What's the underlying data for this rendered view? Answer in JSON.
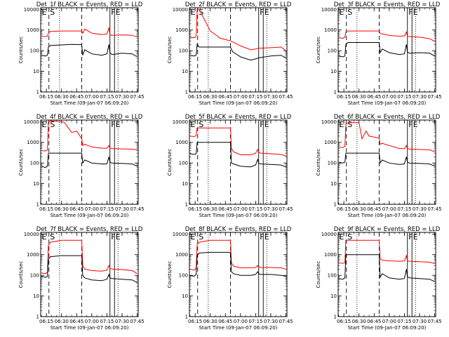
{
  "ylabel": "Counts/sec",
  "xlabel": "Start Time (09-Jan-07 06:09:20)",
  "x_tick_labels": [
    "06:15",
    "06:30",
    "06:45",
    "07:00",
    "07:15",
    "07:30",
    "07:45"
  ],
  "x_tick_minutes": [
    15,
    30,
    45,
    60,
    75,
    90,
    105
  ],
  "xlim_minutes_after_06h": [
    9.33,
    106
  ],
  "y_tick_labels": [
    "1",
    "10",
    "100",
    "1000",
    "10000"
  ],
  "y_scale": "log",
  "ylim": [
    1,
    12000
  ],
  "markers": [
    {
      "label": "E",
      "minute": 9.33,
      "style": "solid"
    },
    {
      "label": "S",
      "minute": 17.5,
      "style": "dashed"
    },
    {
      "label": "",
      "minute": 28,
      "style": "dotted"
    },
    {
      "label": "",
      "minute": 50,
      "style": "dashed"
    },
    {
      "label": "F",
      "minute": 78,
      "style": "solid"
    },
    {
      "label": "E",
      "minute": 82.5,
      "style": "solid"
    },
    {
      "label": "",
      "minute": 86,
      "style": "dotted"
    }
  ],
  "colors": {
    "events": "#000000",
    "lld": "#ff0000",
    "axes": "#000000"
  },
  "chart_data": [
    {
      "type": "line",
      "title": "Det_1f BLACK = Events, RED = LLD",
      "ylabel": "Counts/sec",
      "xlabel": "Start Time (09-Jan-07 06:09:20)",
      "y_scale": "log",
      "series": [
        {
          "x": [
            "06:10",
            "06:14",
            "06:16",
            "06:17",
            "06:19",
            "06:30",
            "06:40",
            "06:50",
            "06:51",
            "06:53",
            "07:00",
            "07:10",
            "07:15",
            "07:17",
            "07:18",
            "07:20",
            "07:30",
            "07:40",
            "07:45"
          ],
          "values": [
            500,
            480,
            500,
            700,
            850,
            900,
            900,
            900,
            700,
            1100,
            700,
            600,
            650,
            1300,
            600,
            550,
            580,
            560,
            460
          ]
        },
        {
          "x": [
            "06:10",
            "06:14",
            "06:16",
            "06:17",
            "06:19",
            "06:30",
            "06:40",
            "06:50",
            "06:51",
            "06:53",
            "07:00",
            "07:10",
            "07:15",
            "07:17",
            "07:18",
            "07:20",
            "07:30",
            "07:40",
            "07:45"
          ],
          "values": [
            60,
            55,
            60,
            150,
            180,
            190,
            200,
            195,
            60,
            110,
            70,
            60,
            70,
            200,
            80,
            65,
            75,
            70,
            50
          ]
        }
      ]
    },
    {
      "type": "line",
      "title": "Det_2f BLACK = Events, RED = LLD",
      "ylabel": "Counts/sec",
      "xlabel": "Start Time (09-Jan-07 06:09:20)",
      "y_scale": "log",
      "series": [
        {
          "x": [
            "06:10",
            "06:14",
            "06:16",
            "06:17",
            "06:19",
            "06:30",
            "06:40",
            "06:50",
            "07:00",
            "07:10",
            "07:15",
            "07:18",
            "07:30",
            "07:40",
            "07:45"
          ],
          "values": [
            450,
            420,
            500,
            10000,
            10000,
            900,
            400,
            300,
            170,
            110,
            120,
            130,
            140,
            150,
            100
          ]
        },
        {
          "x": [
            "06:10",
            "06:14",
            "06:16",
            "06:17",
            "06:19",
            "06:30",
            "06:45",
            "06:50",
            "06:52",
            "07:00",
            "07:10",
            "07:15",
            "07:18",
            "07:30",
            "07:40",
            "07:45"
          ],
          "values": [
            60,
            55,
            60,
            200,
            150,
            150,
            150,
            150,
            90,
            50,
            35,
            40,
            45,
            55,
            60,
            45
          ]
        }
      ]
    },
    {
      "type": "line",
      "title": "Det_3f BLACK = Events, RED = LLD",
      "ylabel": "Counts/sec",
      "xlabel": "Start Time (09-Jan-07 06:09:20)",
      "y_scale": "log",
      "series": [
        {
          "x": [
            "06:10",
            "06:14",
            "06:16",
            "06:17",
            "06:19",
            "06:30",
            "06:45",
            "06:50",
            "06:51",
            "06:53",
            "07:00",
            "07:10",
            "07:15",
            "07:17",
            "07:18",
            "07:20",
            "07:30",
            "07:40",
            "07:45"
          ],
          "values": [
            420,
            400,
            450,
            800,
            900,
            900,
            900,
            900,
            700,
            650,
            550,
            500,
            520,
            800,
            500,
            480,
            450,
            380,
            280
          ]
        },
        {
          "x": [
            "06:10",
            "06:14",
            "06:16",
            "06:17",
            "06:19",
            "06:30",
            "06:45",
            "06:50",
            "06:51",
            "06:53",
            "07:00",
            "07:10",
            "07:15",
            "07:17",
            "07:18",
            "07:20",
            "07:30",
            "07:40",
            "07:45"
          ],
          "values": [
            55,
            50,
            55,
            200,
            250,
            250,
            250,
            250,
            80,
            120,
            80,
            65,
            70,
            200,
            85,
            75,
            80,
            75,
            55
          ]
        }
      ]
    },
    {
      "type": "line",
      "title": "Det_4f BLACK = Events, RED = LLD",
      "ylabel": "Counts/sec",
      "xlabel": "Start Time (09-Jan-07 06:09:20)",
      "y_scale": "log",
      "series": [
        {
          "x": [
            "06:10",
            "06:14",
            "06:16",
            "06:17",
            "06:20",
            "06:30",
            "06:33",
            "06:40",
            "06:45",
            "06:50",
            "06:51",
            "06:53",
            "07:00",
            "07:10",
            "07:15",
            "07:17",
            "07:18",
            "07:20",
            "07:30",
            "07:40",
            "07:45"
          ],
          "values": [
            400,
            380,
            420,
            10000,
            11000,
            10000,
            9000,
            3000,
            3500,
            1500,
            700,
            800,
            600,
            520,
            520,
            700,
            520,
            500,
            480,
            470,
            430
          ]
        },
        {
          "x": [
            "06:10",
            "06:14",
            "06:16",
            "06:17",
            "06:19",
            "06:30",
            "06:45",
            "06:50",
            "06:51",
            "06:53",
            "07:00",
            "07:10",
            "07:15",
            "07:17",
            "07:18",
            "07:20",
            "07:30",
            "07:40",
            "07:45"
          ],
          "values": [
            70,
            60,
            70,
            300,
            300,
            300,
            300,
            300,
            100,
            140,
            100,
            90,
            90,
            200,
            110,
            100,
            95,
            90,
            70
          ]
        }
      ]
    },
    {
      "type": "line",
      "title": "Det_5f BLACK = Events, RED = LLD",
      "ylabel": "Counts/sec",
      "xlabel": "Start Time (09-Jan-07 06:09:20)",
      "y_scale": "log",
      "series": [
        {
          "x": [
            "06:10",
            "06:14",
            "06:16",
            "06:17",
            "06:19",
            "06:30",
            "06:45",
            "06:50",
            "06:51",
            "06:53",
            "07:00",
            "07:10",
            "07:15",
            "07:17",
            "07:18",
            "07:20",
            "07:30",
            "07:40",
            "07:45"
          ],
          "values": [
            2000,
            1900,
            2100,
            5000,
            5000,
            5000,
            5000,
            5000,
            500,
            350,
            250,
            250,
            300,
            450,
            330,
            300,
            280,
            260,
            220
          ]
        },
        {
          "x": [
            "06:10",
            "06:14",
            "06:16",
            "06:17",
            "06:19",
            "06:30",
            "06:45",
            "06:50",
            "06:51",
            "06:53",
            "07:00",
            "07:10",
            "07:15",
            "07:17",
            "07:18",
            "07:20",
            "07:30",
            "07:40",
            "07:45"
          ],
          "values": [
            280,
            260,
            280,
            1000,
            1000,
            1000,
            1000,
            1000,
            100,
            90,
            70,
            65,
            80,
            150,
            100,
            90,
            85,
            80,
            65
          ]
        }
      ]
    },
    {
      "type": "line",
      "title": "Det_6f BLACK = Events, RED = LLD",
      "ylabel": "Counts/sec",
      "xlabel": "Start Time (09-Jan-07 06:09:20)",
      "y_scale": "log",
      "series": [
        {
          "x": [
            "06:10",
            "06:14",
            "06:16",
            "06:17",
            "06:20",
            "06:30",
            "06:33",
            "06:37",
            "06:40",
            "06:45",
            "06:50",
            "06:51",
            "06:53",
            "07:00",
            "07:10",
            "07:15",
            "07:17",
            "07:18",
            "07:20",
            "07:30",
            "07:40",
            "07:45"
          ],
          "values": [
            600,
            550,
            650,
            8000,
            9000,
            9000,
            1500,
            3500,
            2000,
            1800,
            1600,
            800,
            900,
            700,
            500,
            500,
            700,
            500,
            470,
            450,
            430,
            350
          ]
        },
        {
          "x": [
            "06:10",
            "06:14",
            "06:16",
            "06:17",
            "06:19",
            "06:30",
            "06:45",
            "06:50",
            "06:51",
            "06:53",
            "07:00",
            "07:10",
            "07:15",
            "07:17",
            "07:18",
            "07:20",
            "07:30",
            "07:40",
            "07:45"
          ],
          "values": [
            110,
            100,
            110,
            300,
            300,
            300,
            300,
            300,
            100,
            140,
            100,
            85,
            90,
            200,
            110,
            100,
            95,
            90,
            70
          ]
        }
      ]
    },
    {
      "type": "line",
      "title": "Det_7f BLACK = Events, RED = LLD",
      "ylabel": "Counts/sec",
      "xlabel": "Start Time (09-Jan-07 06:09:20)",
      "y_scale": "log",
      "series": [
        {
          "x": [
            "06:10",
            "06:14",
            "06:16",
            "06:17",
            "06:19",
            "06:30",
            "06:45",
            "06:50",
            "06:51",
            "06:53",
            "07:00",
            "07:10",
            "07:15",
            "07:17",
            "07:18",
            "07:20",
            "07:30",
            "07:40",
            "07:45"
          ],
          "values": [
            130,
            120,
            140,
            3000,
            4000,
            5000,
            5000,
            5000,
            300,
            200,
            170,
            160,
            180,
            300,
            220,
            200,
            190,
            170,
            120
          ]
        },
        {
          "x": [
            "06:10",
            "06:14",
            "06:16",
            "06:17",
            "06:19",
            "06:30",
            "06:45",
            "06:50",
            "06:51",
            "06:53",
            "07:00",
            "07:10",
            "07:15",
            "07:17",
            "07:18",
            "07:20",
            "07:30",
            "07:40",
            "07:45"
          ],
          "values": [
            90,
            80,
            90,
            600,
            800,
            900,
            900,
            900,
            100,
            75,
            60,
            55,
            65,
            110,
            75,
            70,
            65,
            60,
            45
          ]
        }
      ]
    },
    {
      "type": "line",
      "title": "Det_8f BLACK = Events, RED = LLD",
      "ylabel": "Counts/sec",
      "xlabel": "Start Time (09-Jan-07 06:09:20)",
      "y_scale": "log",
      "series": [
        {
          "x": [
            "06:10",
            "06:14",
            "06:16",
            "06:17",
            "06:19",
            "06:30",
            "06:45",
            "06:50",
            "06:51",
            "06:53",
            "07:00",
            "07:10",
            "07:15",
            "07:17",
            "07:18",
            "07:20",
            "07:30",
            "07:40",
            "07:45"
          ],
          "values": [
            200,
            180,
            220,
            3000,
            4000,
            5000,
            5000,
            5000,
            400,
            280,
            230,
            230,
            240,
            300,
            250,
            240,
            240,
            230,
            200
          ]
        },
        {
          "x": [
            "06:10",
            "06:14",
            "06:16",
            "06:17",
            "06:19",
            "06:30",
            "06:45",
            "06:50",
            "06:51",
            "06:53",
            "07:00",
            "07:10",
            "07:15",
            "07:17",
            "07:18",
            "07:20",
            "07:30",
            "07:40",
            "07:45"
          ],
          "values": [
            100,
            90,
            110,
            900,
            1200,
            1300,
            1300,
            1300,
            150,
            120,
            100,
            100,
            110,
            150,
            120,
            110,
            110,
            100,
            90
          ]
        }
      ]
    },
    {
      "type": "line",
      "title": "Det_9f BLACK = Events, RED = LLD",
      "ylabel": "Counts/sec",
      "xlabel": "Start Time (09-Jan-07 06:09:20)",
      "y_scale": "log",
      "series": [
        {
          "x": [
            "06:10",
            "06:14",
            "06:16",
            "06:17",
            "06:19",
            "06:30",
            "06:45",
            "06:50",
            "06:51",
            "06:53",
            "07:00",
            "07:10",
            "07:15",
            "07:17",
            "07:18",
            "07:20",
            "07:30",
            "07:40",
            "07:45"
          ],
          "values": [
            400,
            380,
            420,
            5000,
            5000,
            5000,
            5000,
            5000,
            600,
            550,
            500,
            480,
            500,
            900,
            500,
            480,
            460,
            430,
            370
          ]
        },
        {
          "x": [
            "06:10",
            "06:14",
            "06:16",
            "06:17",
            "06:19",
            "06:30",
            "06:45",
            "06:50",
            "06:51",
            "06:53",
            "07:00",
            "07:10",
            "07:15",
            "07:17",
            "07:18",
            "07:20",
            "07:30",
            "07:40",
            "07:45"
          ],
          "values": [
            70,
            65,
            75,
            1000,
            1000,
            1000,
            1000,
            1000,
            80,
            120,
            75,
            65,
            70,
            200,
            85,
            75,
            70,
            65,
            50
          ]
        }
      ]
    }
  ]
}
